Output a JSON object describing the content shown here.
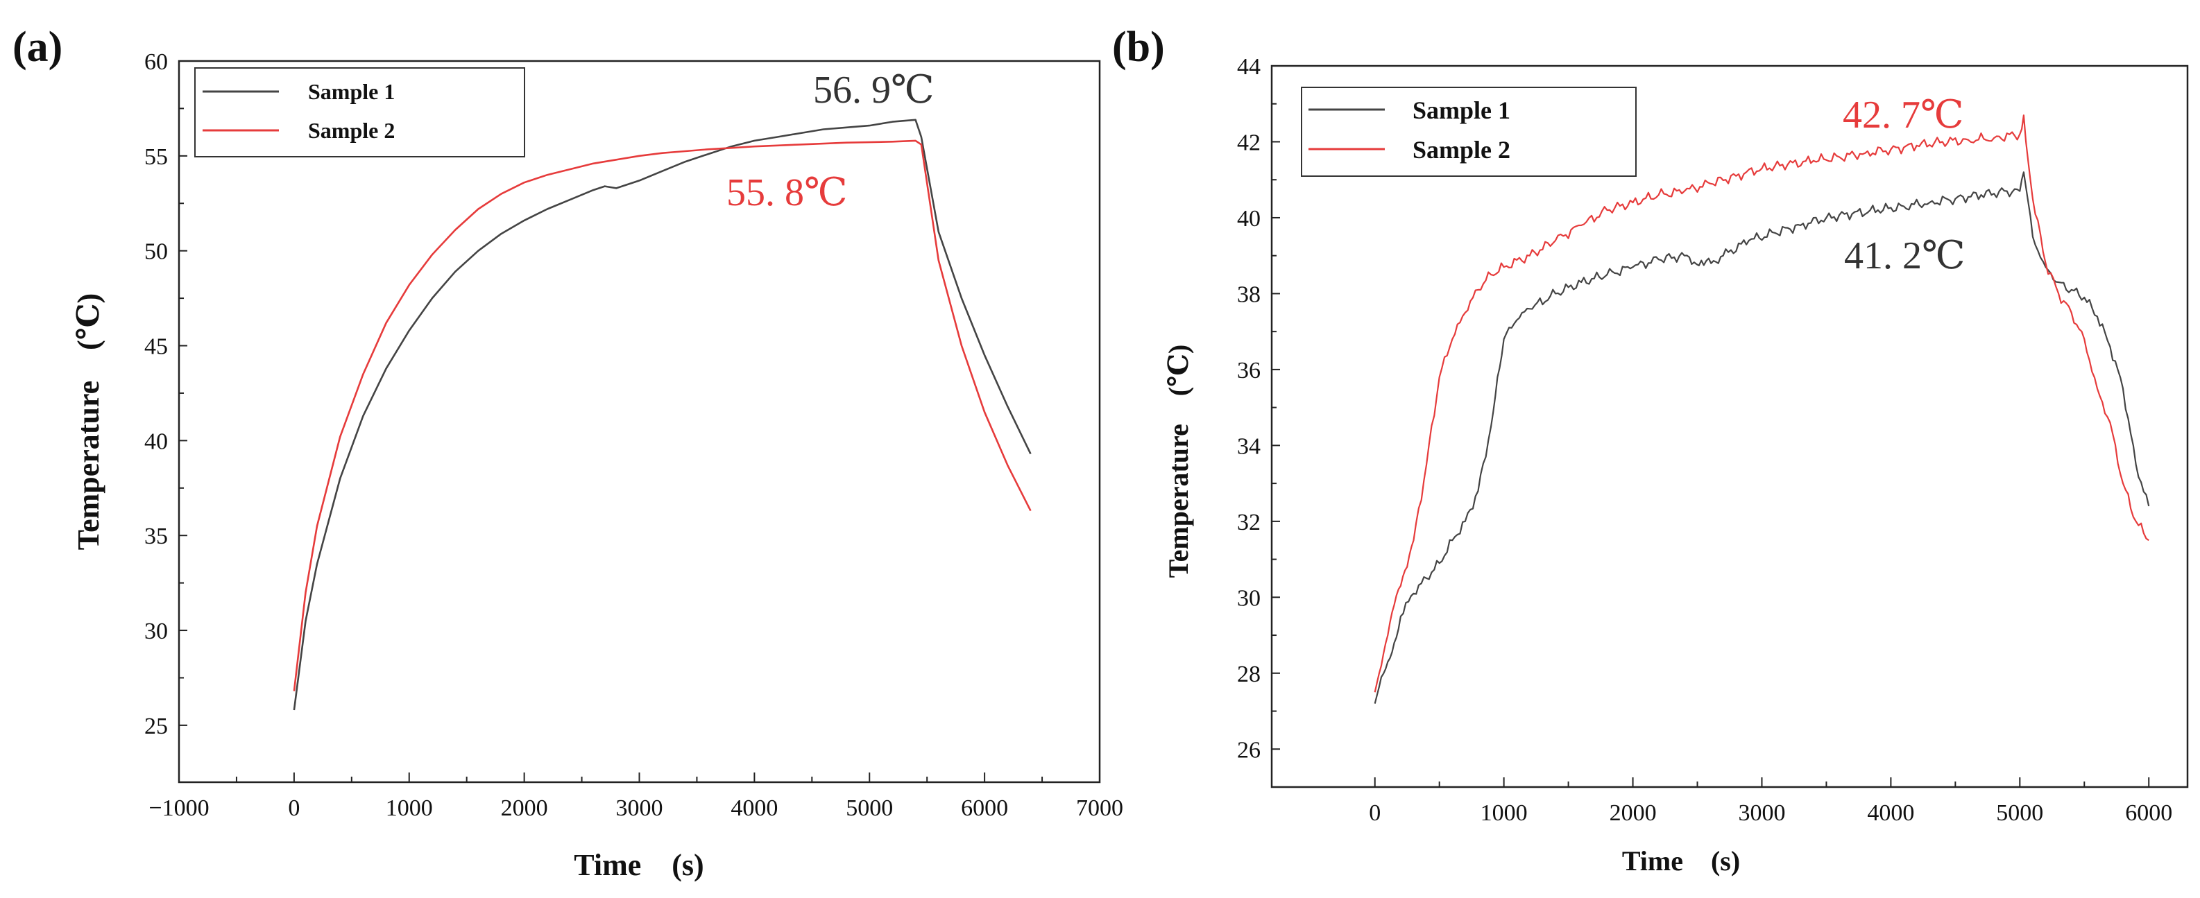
{
  "chart_data": [
    {
      "panel": "(a)",
      "type": "line",
      "xlabel": "Time　(s)",
      "ylabel": "Temperature　(℃)",
      "xlim": [
        -1000,
        7000
      ],
      "ylim": [
        22,
        60
      ],
      "xticks": [
        "−1000",
        "0",
        "1000",
        "2000",
        "3000",
        "4000",
        "5000",
        "6000",
        "7000"
      ],
      "yticks": [
        "25",
        "30",
        "35",
        "40",
        "45",
        "50",
        "55",
        "60"
      ],
      "legend": [
        "Sample 1",
        "Sample 2"
      ],
      "annotations": [
        {
          "text": "56. 9℃",
          "color": "#333333"
        },
        {
          "text": "55. 8℃",
          "color": "#e63b3b"
        }
      ],
      "series": [
        {
          "name": "Sample 1",
          "color": "#444444",
          "x": [
            0,
            100,
            200,
            400,
            600,
            800,
            1000,
            1200,
            1400,
            1600,
            1800,
            2000,
            2200,
            2400,
            2600,
            2700,
            2800,
            3000,
            3200,
            3400,
            3600,
            3800,
            4000,
            4200,
            4400,
            4600,
            4800,
            5000,
            5200,
            5400,
            5450,
            5600,
            5800,
            6000,
            6200,
            6400
          ],
          "y": [
            25.8,
            30.5,
            33.5,
            38.0,
            41.3,
            43.8,
            45.8,
            47.5,
            48.9,
            50.0,
            50.9,
            51.6,
            52.2,
            52.7,
            53.2,
            53.4,
            53.3,
            53.7,
            54.2,
            54.7,
            55.1,
            55.5,
            55.8,
            56.0,
            56.2,
            56.4,
            56.5,
            56.6,
            56.8,
            56.9,
            56.0,
            51.0,
            47.5,
            44.5,
            41.8,
            39.3
          ]
        },
        {
          "name": "Sample 2",
          "color": "#e63b3b",
          "x": [
            0,
            100,
            200,
            400,
            600,
            800,
            1000,
            1200,
            1400,
            1600,
            1800,
            2000,
            2200,
            2400,
            2600,
            2800,
            3000,
            3200,
            3400,
            3600,
            3800,
            4000,
            4200,
            4400,
            4600,
            4800,
            5000,
            5200,
            5400,
            5450,
            5600,
            5800,
            6000,
            6200,
            6400
          ],
          "y": [
            26.8,
            32.0,
            35.5,
            40.2,
            43.5,
            46.2,
            48.2,
            49.8,
            51.1,
            52.2,
            53.0,
            53.6,
            54.0,
            54.3,
            54.6,
            54.8,
            55.0,
            55.15,
            55.25,
            55.35,
            55.42,
            55.5,
            55.55,
            55.6,
            55.65,
            55.7,
            55.72,
            55.75,
            55.8,
            55.6,
            49.5,
            45.0,
            41.5,
            38.7,
            36.3
          ]
        }
      ]
    },
    {
      "panel": "(b)",
      "type": "line",
      "xlabel": "Time　(s)",
      "ylabel": "Temperature　(℃)",
      "xlim": [
        -800,
        6300
      ],
      "ylim": [
        25,
        44
      ],
      "xticks": [
        "0",
        "1000",
        "2000",
        "3000",
        "4000",
        "5000",
        "6000"
      ],
      "yticks": [
        "26",
        "28",
        "30",
        "32",
        "34",
        "36",
        "38",
        "40",
        "42",
        "44"
      ],
      "legend": [
        "Sample 1",
        "Sample 2"
      ],
      "annotations": [
        {
          "text": "42. 7℃",
          "color": "#e63b3b"
        },
        {
          "text": "41. 2℃",
          "color": "#333333"
        }
      ],
      "series": [
        {
          "name": "Sample 1",
          "color": "#444444",
          "x": [
            0,
            50,
            100,
            150,
            200,
            300,
            400,
            500,
            600,
            700,
            800,
            900,
            950,
            1000,
            1100,
            1200,
            1400,
            1600,
            1800,
            2000,
            2200,
            2400,
            2550,
            2700,
            2900,
            3100,
            3300,
            3500,
            3700,
            3900,
            4100,
            4300,
            4500,
            4700,
            4900,
            5000,
            5030,
            5100,
            5200,
            5300,
            5400,
            5500,
            5600,
            5700,
            5800,
            5900,
            6000
          ],
          "y": [
            27.2,
            27.9,
            28.3,
            28.8,
            29.5,
            30.1,
            30.5,
            30.9,
            31.5,
            32.0,
            32.8,
            34.5,
            35.8,
            36.8,
            37.3,
            37.6,
            38.0,
            38.3,
            38.5,
            38.7,
            38.9,
            39.0,
            38.75,
            39.0,
            39.4,
            39.6,
            39.8,
            40.0,
            40.1,
            40.2,
            40.3,
            40.4,
            40.5,
            40.6,
            40.7,
            40.7,
            41.2,
            39.5,
            38.7,
            38.3,
            38.1,
            37.9,
            37.4,
            36.6,
            35.5,
            33.5,
            32.4
          ]
        },
        {
          "name": "Sample 2",
          "color": "#e63b3b",
          "x": [
            0,
            50,
            100,
            150,
            200,
            250,
            300,
            400,
            500,
            600,
            700,
            800,
            900,
            1000,
            1200,
            1400,
            1600,
            1800,
            2000,
            2200,
            2400,
            2600,
            2800,
            3000,
            3200,
            3400,
            3600,
            3800,
            4000,
            4200,
            4400,
            4600,
            4800,
            5000,
            5030,
            5100,
            5200,
            5300,
            5400,
            5500,
            5600,
            5700,
            5800,
            5900,
            6000
          ],
          "y": [
            27.5,
            28.2,
            29.0,
            29.8,
            30.3,
            30.8,
            31.5,
            33.5,
            35.8,
            36.8,
            37.5,
            38.1,
            38.5,
            38.7,
            39.0,
            39.4,
            39.8,
            40.2,
            40.4,
            40.6,
            40.7,
            40.9,
            41.1,
            41.3,
            41.4,
            41.5,
            41.6,
            41.7,
            41.8,
            41.9,
            42.0,
            42.05,
            42.1,
            42.2,
            42.7,
            40.5,
            38.8,
            38.0,
            37.5,
            36.8,
            35.5,
            34.6,
            33.0,
            32.0,
            31.5
          ]
        }
      ]
    }
  ]
}
